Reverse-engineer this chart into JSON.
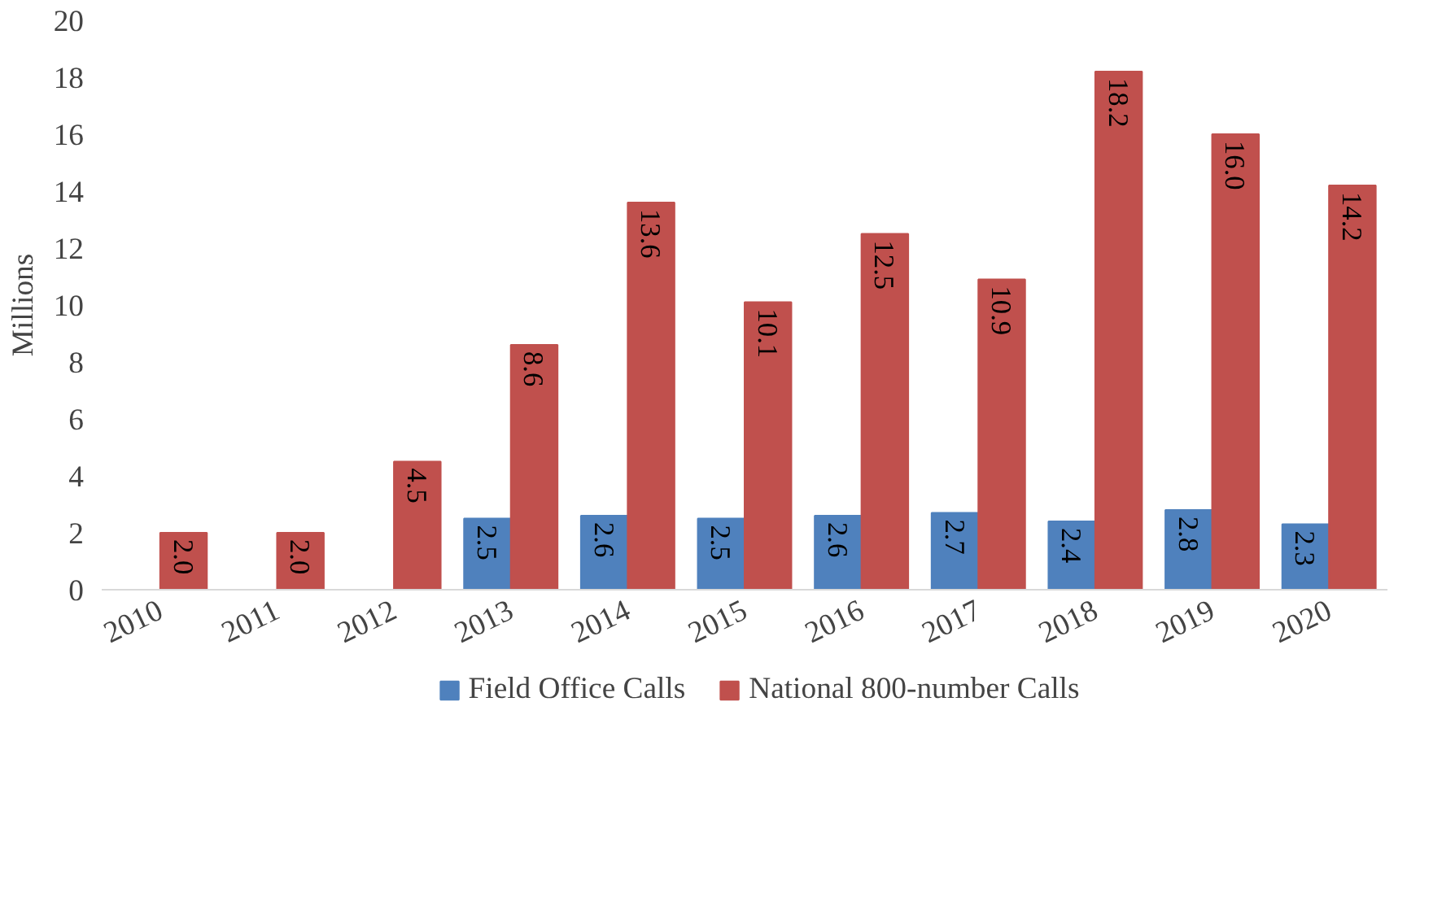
{
  "chart_data": {
    "type": "bar",
    "ylabel": "Millions",
    "categories": [
      "2010",
      "2011",
      "2012",
      "2013",
      "2014",
      "2015",
      "2016",
      "2017",
      "2018",
      "2019",
      "2020"
    ],
    "series": [
      {
        "name": "Field Office Calls",
        "color": "#4f81bd",
        "values": [
          null,
          null,
          null,
          2.5,
          2.6,
          2.5,
          2.6,
          2.7,
          2.4,
          2.8,
          2.3
        ],
        "value_labels": [
          null,
          null,
          null,
          "2.5",
          "2.6",
          "2.5",
          "2.6",
          "2.7",
          "2.4",
          "2.8",
          "2.3"
        ]
      },
      {
        "name": "National 800-number Calls",
        "color": "#c0504d",
        "values": [
          2.0,
          2.0,
          4.5,
          8.6,
          13.6,
          10.1,
          12.5,
          10.9,
          18.2,
          16.0,
          14.2
        ],
        "value_labels": [
          "2.0",
          "2.0",
          "4.5",
          "8.6",
          "13.6",
          "10.1",
          "12.5",
          "10.9",
          "18.2",
          "16.0",
          "14.2"
        ]
      }
    ],
    "ylim": [
      0,
      20
    ],
    "yticks": [
      0,
      2,
      4,
      6,
      8,
      10,
      12,
      14,
      16,
      18,
      20
    ],
    "legend": "bottom"
  }
}
